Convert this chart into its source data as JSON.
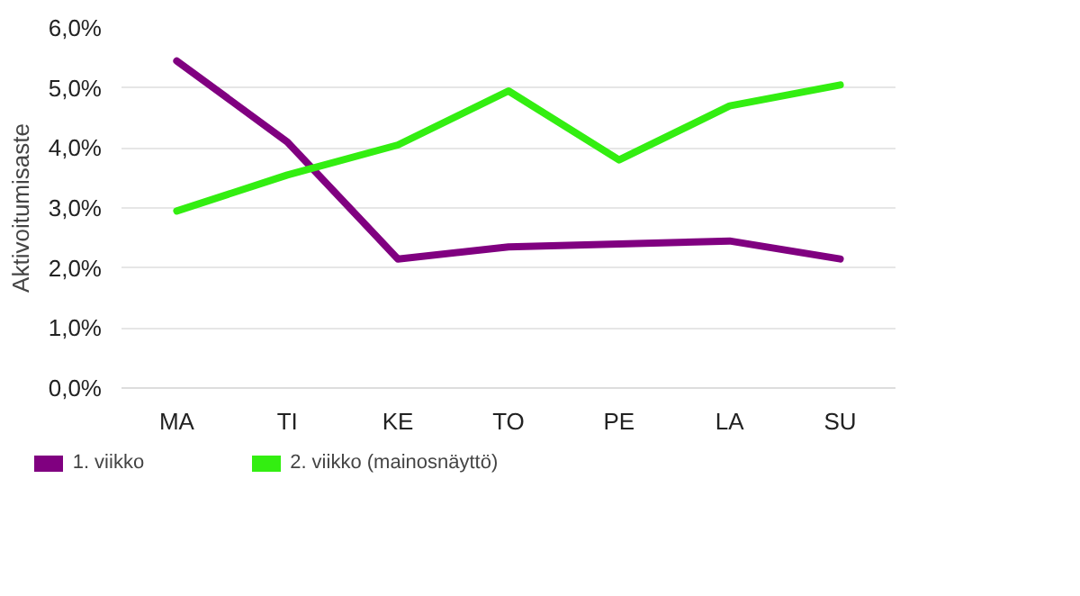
{
  "chart_data": {
    "type": "line",
    "ylabel": "Aktivoitumisaste",
    "categories": [
      "MA",
      "TI",
      "KE",
      "TO",
      "PE",
      "LA",
      "SU"
    ],
    "series": [
      {
        "name": "1. viikko",
        "color": "#800080",
        "values": [
          5.45,
          4.1,
          2.15,
          2.35,
          2.4,
          2.45,
          2.15
        ]
      },
      {
        "name": "2. viikko (mainosnäyttö)",
        "color": "#33ee11",
        "values": [
          2.95,
          3.55,
          4.05,
          4.95,
          3.8,
          4.7,
          5.05
        ]
      }
    ],
    "ylim": [
      0,
      6
    ],
    "yticks": [
      {
        "value": 0,
        "label": "0,0%"
      },
      {
        "value": 1,
        "label": "1,0%"
      },
      {
        "value": 2,
        "label": "2,0%"
      },
      {
        "value": 3,
        "label": "3,0%"
      },
      {
        "value": 4,
        "label": "4,0%"
      },
      {
        "value": 5,
        "label": "5,0%"
      },
      {
        "value": 6,
        "label": "6,0%"
      }
    ],
    "grid": "y",
    "legend": "bottom",
    "marker": "none",
    "line_style": "solid"
  }
}
